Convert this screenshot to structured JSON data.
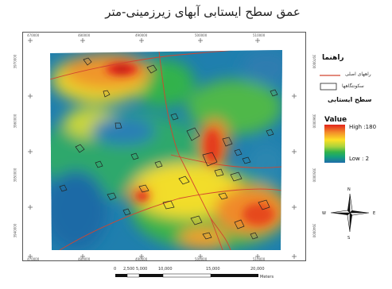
{
  "map": {
    "title": "عمق سطح ایستابی آبهای زیرزمینی-متر",
    "coords": {
      "top": [
        "470000",
        "480000",
        "490000",
        "500000",
        "510000"
      ],
      "bottom": [
        "470000",
        "480000",
        "490000",
        "500000",
        "510000"
      ],
      "left": [
        "3970000",
        "3960000",
        "3950000",
        "3940000"
      ],
      "right": [
        "3970000",
        "3960000",
        "3950000",
        "3940000"
      ]
    },
    "legend": {
      "title": "راهنما",
      "roads_label": "راههای اصلی",
      "settlements_label": "سکونتگاهها",
      "surface_label": "سطح ایستابی",
      "value_label": "Value",
      "high_label": "High :180",
      "low_label": "Low : 2"
    },
    "north_arrow": {
      "n": "N",
      "s": "S",
      "e": "E",
      "w": "W"
    },
    "scale_bar": {
      "labels": [
        "0",
        "2,500",
        "5,000",
        "10,000",
        "15,000",
        "20,000"
      ],
      "unit": "Meters"
    },
    "colors": {
      "high": "#e2231a",
      "low": "#1f6caa",
      "road": "#d2452f"
    }
  }
}
